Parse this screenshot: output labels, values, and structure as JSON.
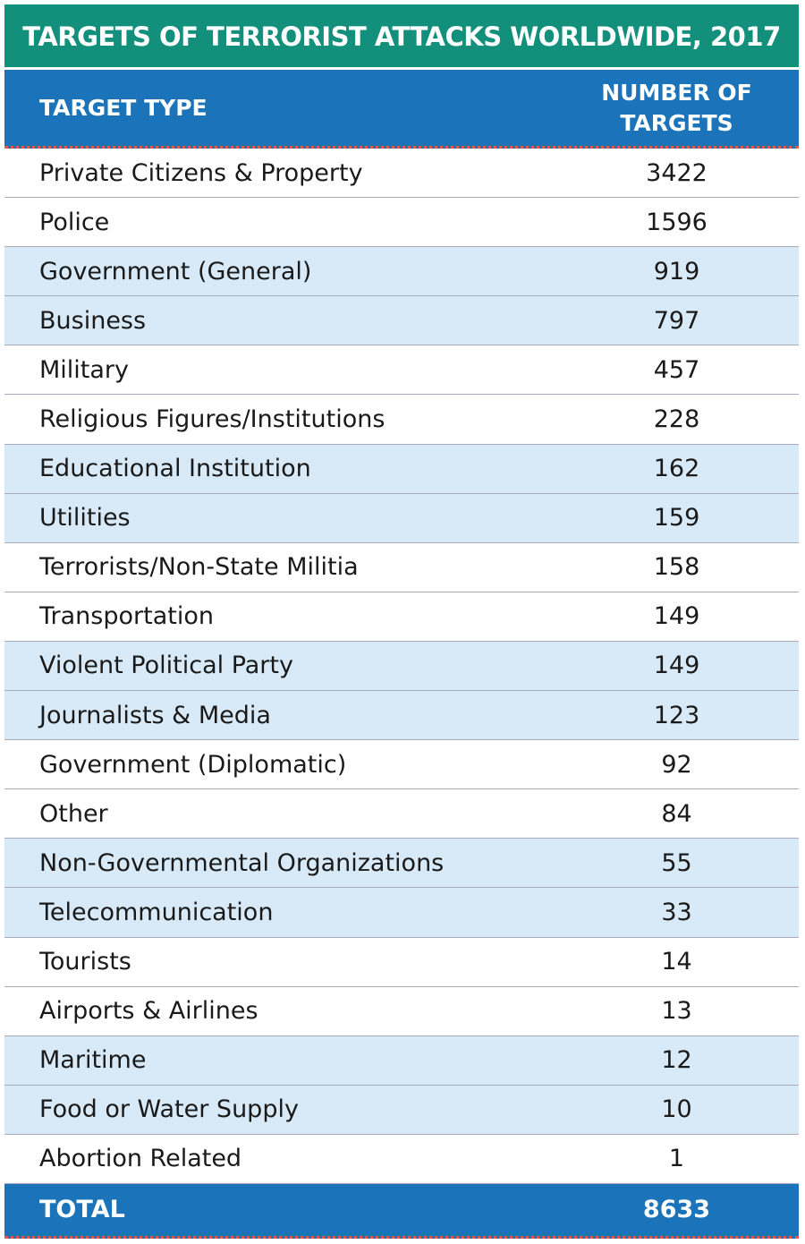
{
  "title": "TARGETS OF TERRORIST ATTACKS WORLDWIDE, 2017",
  "table": {
    "headers": [
      "TARGET TYPE",
      "NUMBER OF TARGETS"
    ],
    "rows": [
      [
        "Private Citizens & Property",
        3422
      ],
      [
        "Police",
        1596
      ],
      [
        "Government (General)",
        919
      ],
      [
        "Business",
        797
      ],
      [
        "Military",
        457
      ],
      [
        "Religious Figures/Institutions",
        228
      ],
      [
        "Educational Institution",
        162
      ],
      [
        "Utilities",
        159
      ],
      [
        "Terrorists/Non-State Militia",
        158
      ],
      [
        "Transportation",
        149
      ],
      [
        "Violent Political Party",
        149
      ],
      [
        "Journalists & Media",
        123
      ],
      [
        "Government (Diplomatic)",
        92
      ],
      [
        "Other",
        84
      ],
      [
        "Non-Governmental Organizations",
        55
      ],
      [
        "Telecommunication",
        33
      ],
      [
        "Tourists",
        14
      ],
      [
        "Airports & Airlines",
        13
      ],
      [
        "Maritime",
        12
      ],
      [
        "Food or Water Supply",
        10
      ],
      [
        "Abortion Related",
        1
      ]
    ],
    "total": [
      "TOTAL",
      8633
    ]
  }
}
